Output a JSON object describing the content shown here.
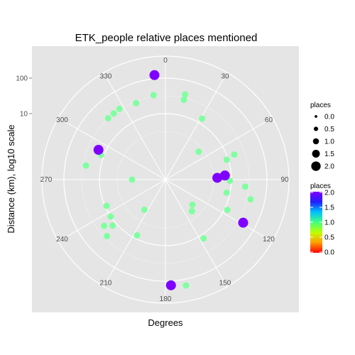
{
  "chart_data": {
    "type": "scatter",
    "coord": "polar",
    "title": "ETK_people relative places mentioned",
    "xlabel": "Degrees",
    "ylabel": "Distance (km), log10 scale",
    "angle_ticks": [
      "0",
      "30",
      "60",
      "90",
      "120",
      "150",
      "180",
      "210",
      "240",
      "270",
      "300",
      "330"
    ],
    "radial_ticks": [
      {
        "label": "10",
        "value": 10
      },
      {
        "label": "100",
        "value": 100
      }
    ],
    "background": "#e5e5e5",
    "grid": true,
    "legend_position": "right",
    "legend": {
      "size": {
        "title": "places",
        "labels": [
          "0.0",
          "0.5",
          "1.0",
          "1.5",
          "2.0"
        ]
      },
      "color": {
        "title": "places",
        "labels": [
          "2.0",
          "1.5",
          "1.0",
          "0.5",
          "0.0"
        ]
      }
    },
    "points": [
      {
        "angle": 354,
        "distance": 126,
        "places": 2
      },
      {
        "angle": 352,
        "distance": 35,
        "places": 1
      },
      {
        "angle": 13,
        "distance": 40,
        "places": 1
      },
      {
        "angle": 13,
        "distance": 28,
        "places": 1
      },
      {
        "angle": 31,
        "distance": 14,
        "places": 1
      },
      {
        "angle": 339,
        "distance": 28,
        "places": 1
      },
      {
        "angle": 327,
        "distance": 33,
        "places": 1
      },
      {
        "angle": 322,
        "distance": 32,
        "places": 1
      },
      {
        "angle": 317,
        "distance": 32,
        "places": 1
      },
      {
        "angle": 294,
        "distance": 16,
        "places": 2
      },
      {
        "angle": 280,
        "distance": 26,
        "places": 1
      },
      {
        "angle": 291,
        "distance": 12,
        "places": 1
      },
      {
        "angle": 70,
        "distance": 16,
        "places": 1
      },
      {
        "angle": 72,
        "distance": 9,
        "places": 1
      },
      {
        "angle": 86,
        "distance": 6.6,
        "places": 2
      },
      {
        "angle": 86,
        "distance": 7.1,
        "places": 1
      },
      {
        "angle": 50,
        "distance": 2.3,
        "places": 1
      },
      {
        "angle": 88,
        "distance": 4.0,
        "places": 2
      },
      {
        "angle": 91,
        "distance": 9.0,
        "places": 1
      },
      {
        "angle": 95,
        "distance": 25,
        "places": 1
      },
      {
        "angle": 102,
        "distance": 8,
        "places": 1
      },
      {
        "angle": 116,
        "distance": 12,
        "places": 1
      },
      {
        "angle": 119,
        "distance": 44,
        "places": 2
      },
      {
        "angle": 103,
        "distance": 40,
        "places": 1
      },
      {
        "angle": 147,
        "distance": 13,
        "places": 1
      },
      {
        "angle": 177,
        "distance": 132,
        "places": 2
      },
      {
        "angle": 169,
        "distance": 150,
        "places": 1
      },
      {
        "angle": 140,
        "distance": 2.0,
        "places": 1
      },
      {
        "angle": 133,
        "distance": 1.5,
        "places": 1
      },
      {
        "angle": 270,
        "distance": 1.2,
        "places": 1
      },
      {
        "angle": 215,
        "distance": 1.5,
        "places": 1
      },
      {
        "angle": 236,
        "distance": 10,
        "places": 1
      },
      {
        "angle": 229,
        "distance": 13,
        "places": 1
      },
      {
        "angle": 233,
        "distance": 20,
        "places": 1
      },
      {
        "angle": 226,
        "distance": 27,
        "places": 1
      },
      {
        "angle": 207,
        "distance": 8,
        "places": 1
      },
      {
        "angle": 246,
        "distance": 9,
        "places": 1
      }
    ]
  }
}
